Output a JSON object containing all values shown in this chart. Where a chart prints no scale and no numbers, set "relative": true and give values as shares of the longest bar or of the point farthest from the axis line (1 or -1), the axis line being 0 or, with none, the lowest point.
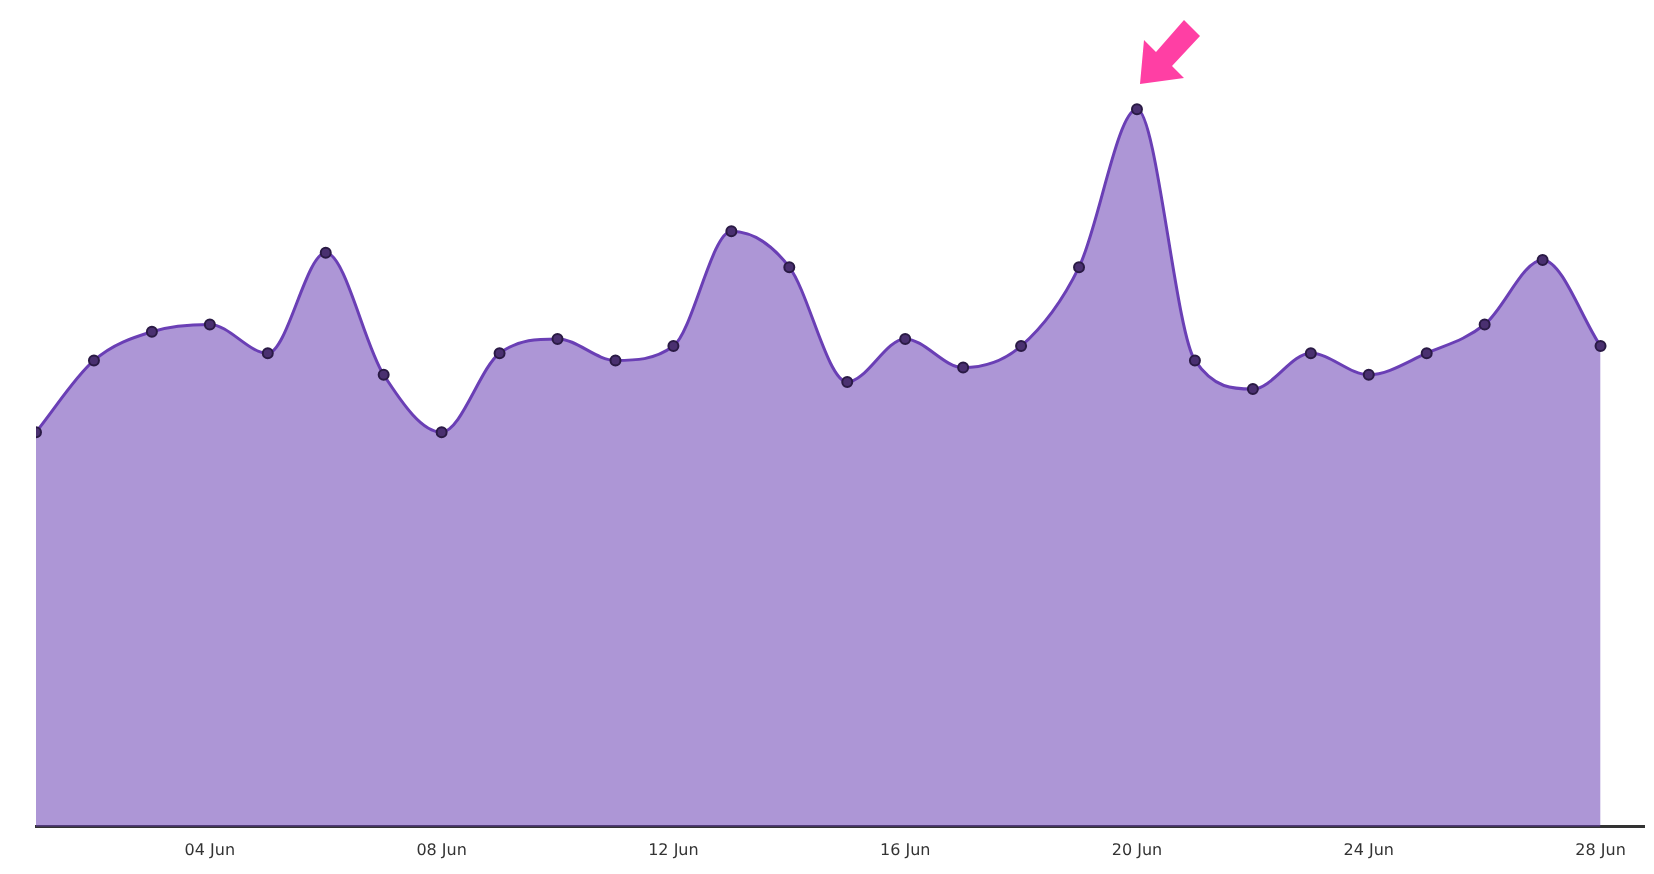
{
  "chart_data": {
    "type": "area",
    "relative": true,
    "marker": "circle",
    "color": "#6a3fb5",
    "x": [
      "--06-01",
      "--06-02",
      "--06-03",
      "--06-04",
      "--06-05",
      "--06-06",
      "--06-07",
      "--06-08",
      "--06-09",
      "--06-10",
      "--06-11",
      "--06-12",
      "--06-13",
      "--06-14",
      "--06-15",
      "--06-16",
      "--06-17",
      "--06-18",
      "--06-19",
      "--06-20",
      "--06-21",
      "--06-22",
      "--06-23",
      "--06-24",
      "--06-25",
      "--06-26",
      "--06-27",
      "--06-28"
    ],
    "values": [
      0.55,
      0.65,
      0.69,
      0.7,
      0.66,
      0.8,
      0.63,
      0.55,
      0.66,
      0.68,
      0.65,
      0.67,
      0.83,
      0.78,
      0.62,
      0.68,
      0.64,
      0.67,
      0.78,
      1,
      0.65,
      0.61,
      0.66,
      0.63,
      0.66,
      0.7,
      0.79,
      0.67
    ],
    "xlim": [
      "--06-01",
      "--06-28T18:00"
    ],
    "xticks": [
      {
        "value": "--06-04",
        "label": "04 Jun"
      },
      {
        "value": "--06-08",
        "label": "08 Jun"
      },
      {
        "value": "--06-12",
        "label": "12 Jun"
      },
      {
        "value": "--06-16",
        "label": "16 Jun"
      },
      {
        "value": "--06-20",
        "label": "20 Jun"
      },
      {
        "value": "--06-24",
        "label": "24 Jun"
      },
      {
        "value": "--06-28",
        "label": "28 Jun"
      }
    ],
    "grid": false,
    "legend": false
  }
}
